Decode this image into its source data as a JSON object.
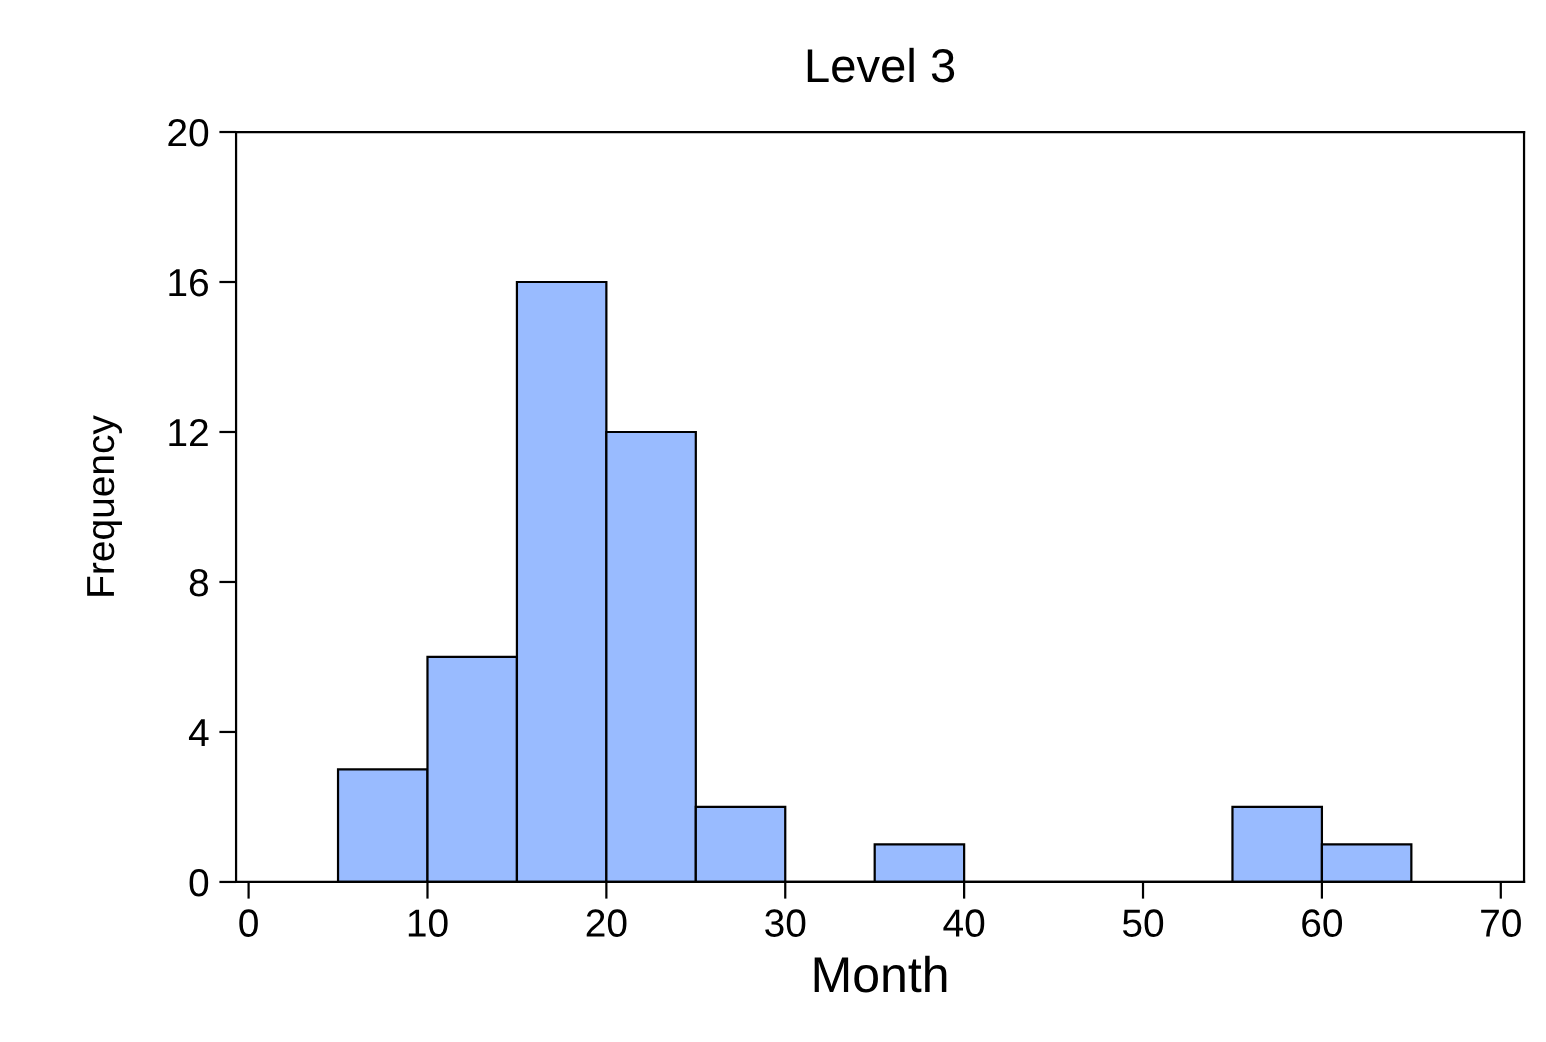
{
  "chart_data": {
    "type": "histogram",
    "title": "Level 3",
    "xlabel": "Month",
    "ylabel": "Frequency",
    "bins": [
      5,
      10,
      15,
      20,
      25,
      30,
      35,
      40,
      45,
      50,
      55,
      60,
      65
    ],
    "values": [
      3,
      6,
      16,
      12,
      2,
      0,
      1,
      0,
      0,
      0,
      2,
      1
    ],
    "color": "#99bbff",
    "xlim": [
      -0.7,
      71.3
    ],
    "xticks": [
      0,
      10,
      20,
      30,
      40,
      50,
      60,
      70
    ],
    "ylim": [
      0,
      20
    ],
    "yticks": [
      0,
      4,
      8,
      12,
      16,
      20
    ],
    "grid": false
  }
}
